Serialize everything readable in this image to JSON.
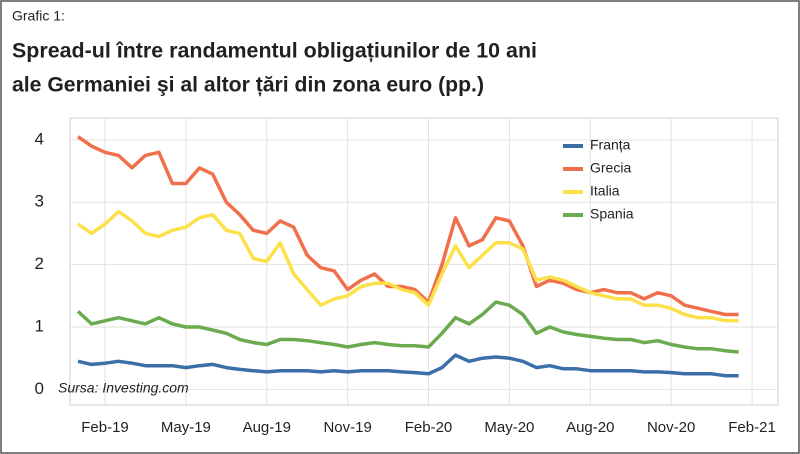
{
  "chart_data": {
    "type": "line",
    "label": "Grafic 1:",
    "title": [
      "Spread-ul între randamentul obligațiunilor de 10 ani",
      "ale Germaniei şi al altor țări din zona euro (pp.)"
    ],
    "source": "Sursa: Investing.com",
    "categories": [
      null,
      null,
      "Feb-19",
      null,
      null,
      null,
      null,
      null,
      "May-19",
      null,
      null,
      null,
      null,
      null,
      "Aug-19",
      null,
      null,
      null,
      null,
      null,
      "Nov-19",
      null,
      null,
      null,
      null,
      null,
      "Feb-20",
      null,
      null,
      null,
      null,
      null,
      "May-20",
      null,
      null,
      null,
      null,
      null,
      "Aug-20",
      null,
      null,
      null,
      null,
      null,
      "Nov-20",
      null,
      null,
      null,
      null,
      null,
      "Feb-21"
    ],
    "series": [
      {
        "name": "Franța",
        "color": "#3b6fa8",
        "values": [
          0.45,
          0.4,
          0.42,
          0.45,
          0.42,
          0.38,
          0.38,
          0.38,
          0.35,
          0.38,
          0.4,
          0.35,
          0.32,
          0.3,
          0.28,
          0.3,
          0.3,
          0.3,
          0.28,
          0.3,
          0.28,
          0.3,
          0.3,
          0.3,
          0.28,
          0.27,
          0.25,
          0.35,
          0.55,
          0.45,
          0.5,
          0.52,
          0.5,
          0.45,
          0.35,
          0.38,
          0.33,
          0.33,
          0.3,
          0.3,
          0.3,
          0.3,
          0.28,
          0.28,
          0.27,
          0.25,
          0.25,
          0.25,
          0.22,
          0.22,
          null
        ]
      },
      {
        "name": "Grecia",
        "color": "#f1704c",
        "values": [
          4.05,
          3.9,
          3.8,
          3.75,
          3.55,
          3.75,
          3.8,
          3.3,
          3.3,
          3.55,
          3.45,
          3.0,
          2.8,
          2.55,
          2.5,
          2.7,
          2.6,
          2.15,
          1.95,
          1.9,
          1.6,
          1.75,
          1.85,
          1.65,
          1.65,
          1.6,
          1.4,
          2.0,
          2.75,
          2.3,
          2.4,
          2.75,
          2.7,
          2.3,
          1.65,
          1.75,
          1.7,
          1.6,
          1.55,
          1.6,
          1.55,
          1.55,
          1.45,
          1.55,
          1.5,
          1.35,
          1.3,
          1.25,
          1.2,
          1.2,
          null
        ]
      },
      {
        "name": "Italia",
        "color": "#fde14a",
        "values": [
          2.65,
          2.5,
          2.65,
          2.85,
          2.7,
          2.5,
          2.45,
          2.55,
          2.6,
          2.75,
          2.8,
          2.55,
          2.5,
          2.1,
          2.05,
          2.35,
          1.85,
          1.6,
          1.35,
          1.45,
          1.5,
          1.65,
          1.7,
          1.7,
          1.6,
          1.55,
          1.35,
          1.85,
          2.3,
          1.95,
          2.15,
          2.35,
          2.35,
          2.25,
          1.75,
          1.8,
          1.75,
          1.65,
          1.55,
          1.5,
          1.45,
          1.45,
          1.35,
          1.35,
          1.3,
          1.2,
          1.15,
          1.15,
          1.1,
          1.1,
          null
        ]
      },
      {
        "name": "Spania",
        "color": "#6aab4f",
        "values": [
          1.25,
          1.05,
          1.1,
          1.15,
          1.1,
          1.05,
          1.15,
          1.05,
          1.0,
          1.0,
          0.95,
          0.9,
          0.8,
          0.75,
          0.72,
          0.8,
          0.8,
          0.78,
          0.75,
          0.72,
          0.68,
          0.72,
          0.75,
          0.72,
          0.7,
          0.7,
          0.68,
          0.9,
          1.15,
          1.05,
          1.2,
          1.4,
          1.35,
          1.2,
          0.9,
          1.0,
          0.92,
          0.88,
          0.85,
          0.82,
          0.8,
          0.8,
          0.75,
          0.78,
          0.72,
          0.68,
          0.65,
          0.65,
          0.62,
          0.6,
          null
        ]
      }
    ],
    "ylim": [
      -0.25,
      4.35
    ],
    "yticks": [
      0,
      1,
      2,
      3,
      4
    ],
    "grid": true,
    "legend": "top-right"
  }
}
